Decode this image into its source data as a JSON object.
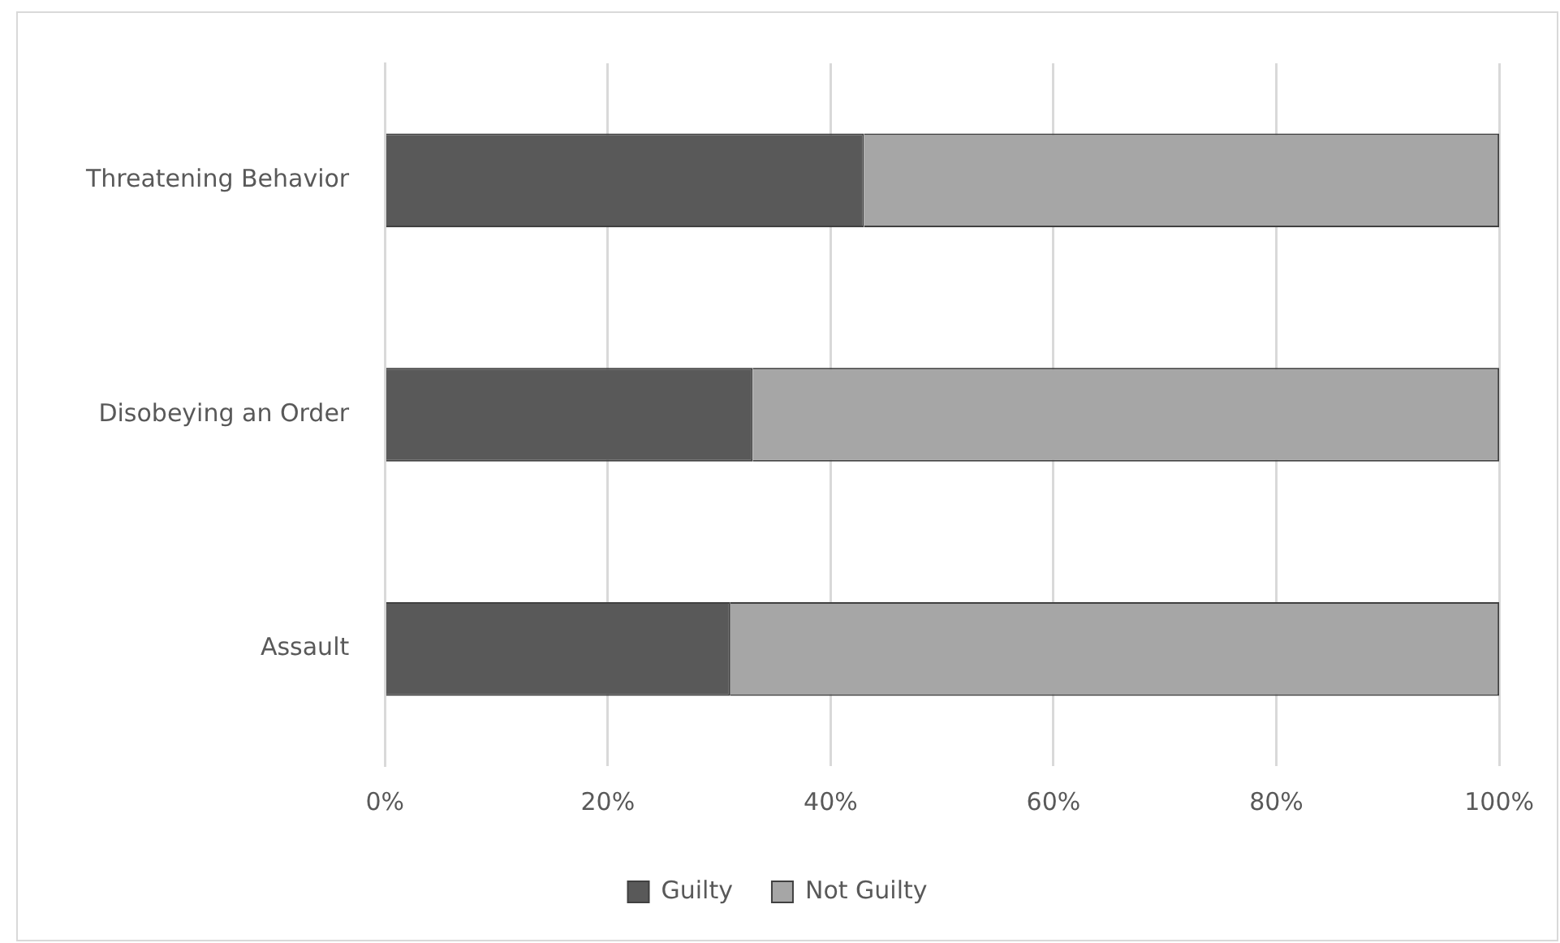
{
  "chart_data": {
    "type": "bar",
    "orientation": "horizontal",
    "stacked": true,
    "categories": [
      "Threatening Behavior",
      "Disobeying an Order",
      "Assault"
    ],
    "series": [
      {
        "name": "Guilty",
        "color": "#595959",
        "values": [
          43,
          33,
          31
        ]
      },
      {
        "name": "Not Guilty",
        "color": "#a6a6a6",
        "values": [
          57,
          67,
          69
        ]
      }
    ],
    "xlim": [
      0,
      100
    ],
    "xticks": [
      {
        "value": 0,
        "label": "0%"
      },
      {
        "value": 20,
        "label": "20%"
      },
      {
        "value": 40,
        "label": "40%"
      },
      {
        "value": 60,
        "label": "60%"
      },
      {
        "value": 80,
        "label": "80%"
      },
      {
        "value": 100,
        "label": "100%"
      }
    ],
    "grid": "x",
    "legend": "bottom"
  }
}
